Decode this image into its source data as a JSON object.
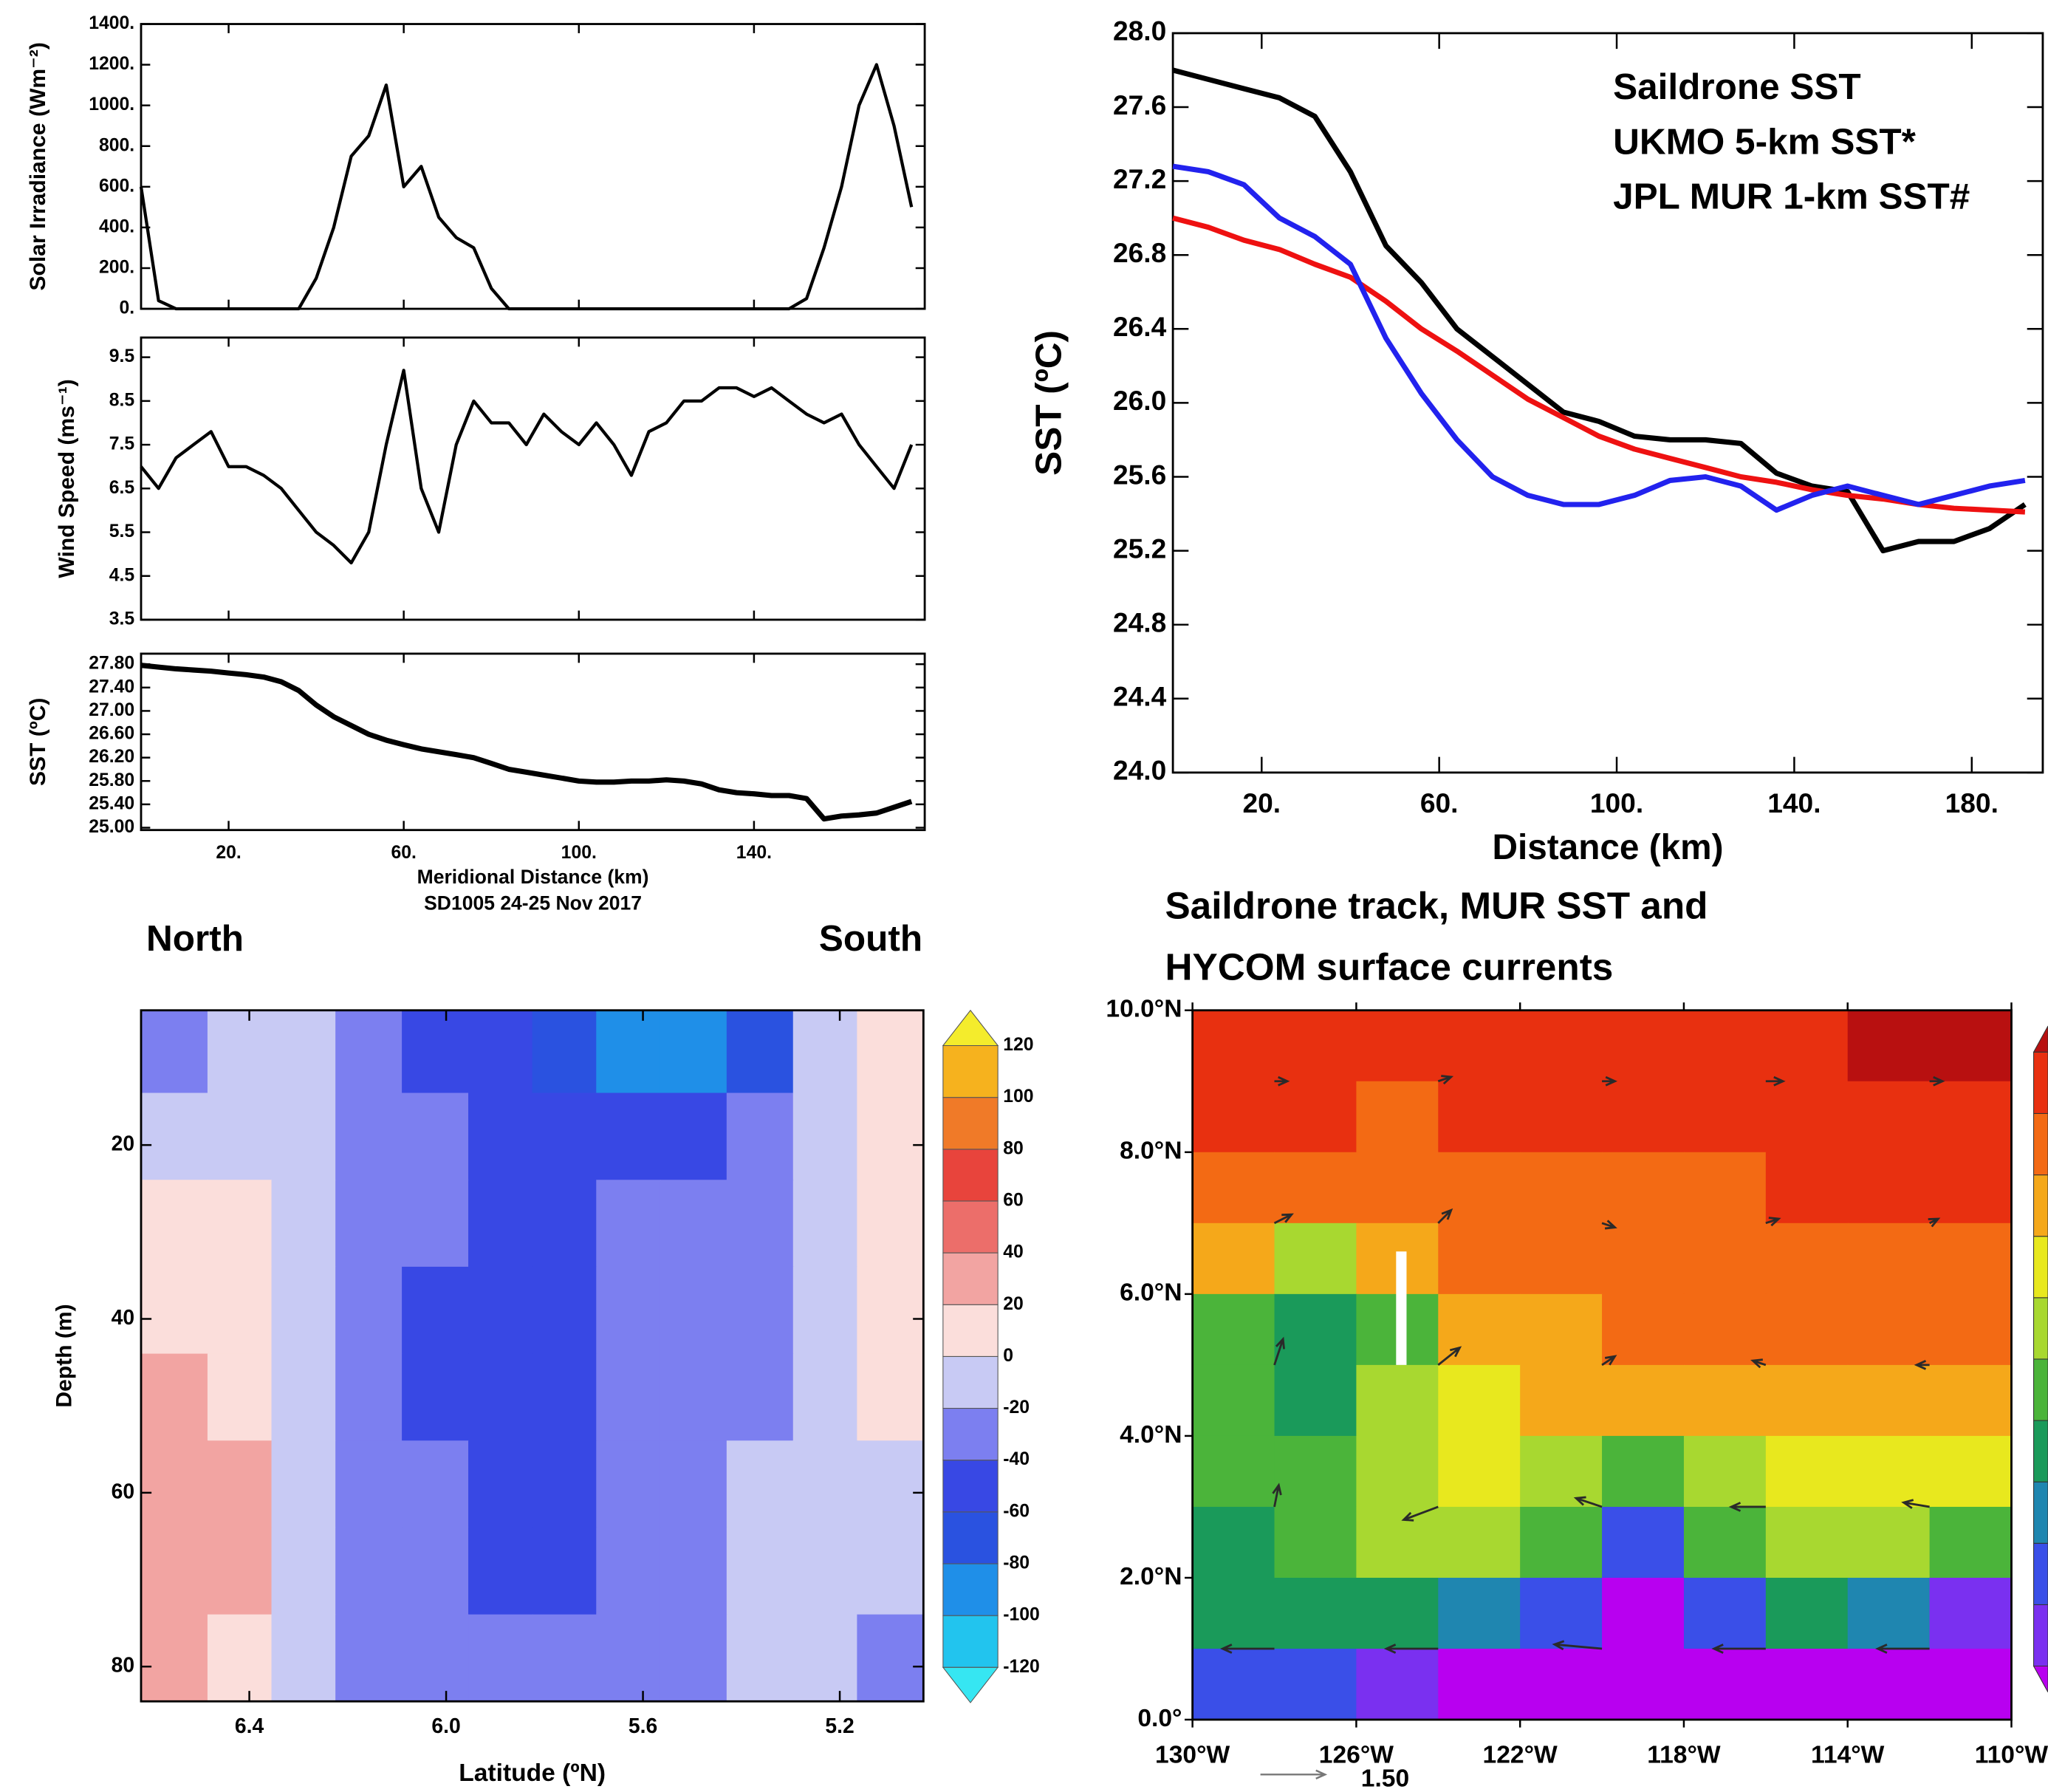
{
  "chart_data": [
    {
      "type": "line",
      "ylabel": "Solar Irradiance (Wm⁻²)",
      "x": [
        0,
        4,
        8,
        12,
        16,
        20,
        24,
        28,
        32,
        36,
        40,
        44,
        48,
        52,
        56,
        60,
        64,
        68,
        72,
        76,
        80,
        84,
        88,
        92,
        96,
        100,
        104,
        108,
        112,
        116,
        120,
        124,
        128,
        132,
        136,
        140,
        144,
        148,
        152,
        156,
        160,
        164,
        168,
        172,
        176
      ],
      "values": [
        600,
        40,
        0,
        0,
        0,
        0,
        0,
        0,
        0,
        0,
        150,
        400,
        750,
        850,
        1100,
        600,
        700,
        450,
        350,
        300,
        100,
        0,
        0,
        0,
        0,
        0,
        0,
        0,
        0,
        0,
        0,
        0,
        0,
        0,
        0,
        0,
        0,
        0,
        50,
        300,
        600,
        1000,
        1200,
        900,
        500
      ],
      "color": "#000000",
      "xlim": [
        0,
        179
      ],
      "ylim": [
        0,
        1400
      ],
      "yticks": [
        {
          "value": 0,
          "label": "0."
        },
        {
          "value": 200,
          "label": "200."
        },
        {
          "value": 400,
          "label": "400."
        },
        {
          "value": 600,
          "label": "600."
        },
        {
          "value": 800,
          "label": "800."
        },
        {
          "value": 1000,
          "label": "1000."
        },
        {
          "value": 1200,
          "label": "1200."
        },
        {
          "value": 1400,
          "label": "1400."
        }
      ]
    },
    {
      "type": "line",
      "ylabel": "Wind Speed (ms⁻¹)",
      "x": [
        0,
        4,
        8,
        12,
        16,
        20,
        24,
        28,
        32,
        36,
        40,
        44,
        48,
        52,
        56,
        60,
        64,
        68,
        72,
        76,
        80,
        84,
        88,
        92,
        96,
        100,
        104,
        108,
        112,
        116,
        120,
        124,
        128,
        132,
        136,
        140,
        144,
        148,
        152,
        156,
        160,
        164,
        168,
        172,
        176
      ],
      "values": [
        7,
        6.5,
        7.2,
        7.5,
        7.8,
        7,
        7,
        6.8,
        6.5,
        6,
        5.5,
        5.2,
        4.8,
        5.5,
        7.5,
        9.2,
        6.5,
        5.5,
        7.5,
        8.5,
        8,
        8,
        7.5,
        8.2,
        7.8,
        7.5,
        8,
        7.5,
        6.8,
        7.8,
        8,
        8.5,
        8.5,
        8.8,
        8.8,
        8.6,
        8.8,
        8.5,
        8.2,
        8,
        8.2,
        7.5,
        7,
        6.5,
        7.5
      ],
      "color": "#000000",
      "xlim": [
        0,
        179
      ],
      "ylim": [
        3.5,
        9.95
      ],
      "yticks": [
        3.5,
        4.5,
        5.5,
        6.5,
        7.5,
        8.5,
        9.5
      ]
    },
    {
      "type": "line",
      "ylabel": "SST (ºC)",
      "xlabel": "Meridional Distance (km)",
      "subtitle": "SD1005 24-25 Nov 2017",
      "annotations": [
        "North",
        "South"
      ],
      "x": [
        0,
        4,
        8,
        12,
        16,
        20,
        24,
        28,
        32,
        36,
        40,
        44,
        48,
        52,
        56,
        60,
        64,
        68,
        72,
        76,
        80,
        84,
        88,
        92,
        96,
        100,
        104,
        108,
        112,
        116,
        120,
        124,
        128,
        132,
        136,
        140,
        144,
        148,
        152,
        156,
        160,
        164,
        168,
        172,
        176
      ],
      "values": [
        27.78,
        27.75,
        27.72,
        27.7,
        27.68,
        27.65,
        27.62,
        27.58,
        27.5,
        27.35,
        27.1,
        26.9,
        26.75,
        26.6,
        26.5,
        26.42,
        26.35,
        26.3,
        26.25,
        26.2,
        26.1,
        26,
        25.95,
        25.9,
        25.85,
        25.8,
        25.78,
        25.78,
        25.8,
        25.8,
        25.82,
        25.8,
        25.75,
        25.65,
        25.6,
        25.58,
        25.55,
        25.55,
        25.5,
        25.15,
        25.2,
        25.22,
        25.25,
        25.35,
        25.45
      ],
      "color": "#000000",
      "xlim": [
        0,
        179
      ],
      "ylim": [
        24.96,
        27.98
      ],
      "xticks": [
        {
          "value": 20,
          "label": "20."
        },
        {
          "value": 60,
          "label": "60."
        },
        {
          "value": 100,
          "label": "100."
        },
        {
          "value": 140,
          "label": "140."
        }
      ],
      "yticks": [
        {
          "value": 25,
          "label": "25.00"
        },
        {
          "value": 25.4,
          "label": "25.40"
        },
        {
          "value": 25.8,
          "label": "25.80"
        },
        {
          "value": 26.2,
          "label": "26.20"
        },
        {
          "value": 26.6,
          "label": "26.60"
        },
        {
          "value": 27,
          "label": "27.00"
        },
        {
          "value": 27.4,
          "label": "27.40"
        },
        {
          "value": 27.8,
          "label": "27.80"
        }
      ]
    },
    {
      "type": "line",
      "xlabel": "Distance (km)",
      "ylabel": "SST (ºC)",
      "legend": "upper right",
      "x": [
        0,
        8,
        16,
        24,
        32,
        40,
        48,
        56,
        64,
        72,
        80,
        88,
        96,
        104,
        112,
        120,
        128,
        136,
        144,
        152,
        160,
        168,
        176,
        184,
        192
      ],
      "series": [
        {
          "name": "Saildrone SST",
          "color": "#000000",
          "values": [
            27.8,
            27.75,
            27.7,
            27.65,
            27.55,
            27.25,
            26.85,
            26.65,
            26.4,
            26.25,
            26.1,
            25.95,
            25.9,
            25.82,
            25.8,
            25.8,
            25.78,
            25.62,
            25.55,
            25.52,
            25.2,
            25.25,
            25.25,
            25.32,
            25.45
          ]
        },
        {
          "name": "UKMO 5-km SST*",
          "color": "#ee1111",
          "values": [
            27,
            26.95,
            26.88,
            26.83,
            26.75,
            26.68,
            26.55,
            26.4,
            26.28,
            26.15,
            26.02,
            25.92,
            25.82,
            25.75,
            25.7,
            25.65,
            25.6,
            25.57,
            25.53,
            25.5,
            25.48,
            25.45,
            25.43,
            25.42,
            25.41
          ]
        },
        {
          "name": "JPL MUR 1-km SST#",
          "color": "#2222ee",
          "values": [
            27.28,
            27.25,
            27.18,
            27,
            26.9,
            26.75,
            26.35,
            26.05,
            25.8,
            25.6,
            25.5,
            25.45,
            25.45,
            25.5,
            25.58,
            25.6,
            25.55,
            25.42,
            25.5,
            25.55,
            25.5,
            25.45,
            25.5,
            25.55,
            25.58
          ]
        }
      ],
      "xlim": [
        0,
        196
      ],
      "ylim": [
        24,
        28
      ],
      "xticks": [
        {
          "value": 20,
          "label": "20."
        },
        {
          "value": 60,
          "label": "60."
        },
        {
          "value": 100,
          "label": "100."
        },
        {
          "value": 140,
          "label": "140."
        },
        {
          "value": 180,
          "label": "180."
        }
      ],
      "yticks": [
        {
          "value": 24,
          "label": "24.0"
        },
        24.4,
        24.8,
        25.2,
        25.6,
        {
          "value": 26,
          "label": "26.0"
        },
        26.4,
        26.8,
        27.2,
        27.6,
        {
          "value": 28,
          "label": "28.0"
        }
      ]
    },
    {
      "type": "contour",
      "xlabel": "Latitude (ºN)",
      "ylabel": "Depth (m)",
      "x": [
        6.55,
        6.42,
        6.29,
        6.16,
        6.02,
        5.89,
        5.76,
        5.63,
        5.5,
        5.36,
        5.23,
        5.1
      ],
      "y": [
        9,
        19,
        29,
        39,
        49,
        59,
        69,
        79
      ],
      "z": [
        [
          -30,
          -20,
          -10,
          -40,
          -50,
          -50,
          -70,
          -100,
          -90,
          -80,
          -20,
          10
        ],
        [
          -10,
          -10,
          -10,
          -30,
          -40,
          -45,
          -50,
          -60,
          -50,
          -40,
          -10,
          10
        ],
        [
          0,
          0,
          -10,
          -30,
          -40,
          -50,
          -50,
          -40,
          -30,
          -30,
          -10,
          10
        ],
        [
          10,
          0,
          -10,
          -30,
          -45,
          -55,
          -60,
          -40,
          -30,
          -30,
          -10,
          10
        ],
        [
          20,
          10,
          -10,
          -30,
          -45,
          -55,
          -50,
          -40,
          -30,
          -25,
          -10,
          0
        ],
        [
          30,
          20,
          -10,
          -30,
          -40,
          -50,
          -50,
          -40,
          -30,
          -20,
          -10,
          -10
        ],
        [
          30,
          20,
          -10,
          -30,
          -40,
          -45,
          -45,
          -35,
          -30,
          -20,
          -10,
          -20
        ],
        [
          30,
          10,
          -20,
          -30,
          -40,
          -40,
          -40,
          -30,
          -30,
          -20,
          -20,
          -40
        ]
      ],
      "xlim": [
        6.62,
        5.03
      ],
      "ylim": [
        84,
        4.5
      ],
      "xticks": [
        6.4,
        {
          "value": 6,
          "label": "6.0"
        },
        5.6,
        5.2
      ],
      "yticks": [
        20,
        40,
        60,
        80
      ],
      "colorbar": {
        "ticks": [
          -120,
          -100,
          -80,
          -60,
          -40,
          -20,
          0,
          20,
          40,
          60,
          80,
          100,
          120
        ],
        "colors": [
          "#36e6f2",
          "#22c4ee",
          "#1f8fe8",
          "#2a52e0",
          "#3848e4",
          "#7c7ff0",
          "#c8caf4",
          "#fbdedb",
          "#f2a4a2",
          "#ec6e6a",
          "#e8443c",
          "#f07a28",
          "#f6b21e",
          "#f4ec2c"
        ]
      }
    },
    {
      "type": "map",
      "title": [
        "Saildrone track, MUR SST and",
        "HYCOM surface currents"
      ],
      "x": [
        -129,
        -127,
        -125,
        -123,
        -121,
        -119,
        -117,
        -115,
        -113,
        -111
      ],
      "y": [
        9.5,
        8.5,
        7.5,
        6.5,
        5.5,
        4.5,
        3.5,
        2.5,
        1.5,
        0.5
      ],
      "z": [
        [
          29.2,
          29.2,
          29,
          29.2,
          29.2,
          29.2,
          29.3,
          29.3,
          29.5,
          29.6
        ],
        [
          29,
          29,
          28.8,
          29,
          29,
          29,
          29.1,
          29.2,
          29.2,
          29.3
        ],
        [
          28.7,
          28.6,
          28.7,
          28.8,
          28.8,
          28.9,
          28.9,
          29,
          29.1,
          29.1
        ],
        [
          28,
          27.3,
          28,
          28.5,
          28.6,
          28.7,
          28.7,
          28.8,
          28.8,
          28.9
        ],
        [
          26.8,
          26.3,
          26.9,
          28,
          28.3,
          28.5,
          28.5,
          28.5,
          28.6,
          28.7
        ],
        [
          26.6,
          26.4,
          27.2,
          27.7,
          28,
          28,
          28,
          28.2,
          28.2,
          28.4
        ],
        [
          26.5,
          26.8,
          27.3,
          27.5,
          27.2,
          26.5,
          27.3,
          27.6,
          27.6,
          27.8
        ],
        [
          26.3,
          26.6,
          27,
          27,
          26.6,
          25.2,
          26.8,
          27.1,
          27.2,
          26.8
        ],
        [
          26,
          26.2,
          26.1,
          25.8,
          25,
          24.2,
          25.4,
          26,
          25.6,
          24.6
        ],
        [
          25.3,
          25,
          24.6,
          24.2,
          24.2,
          24.2,
          24.2,
          24.3,
          24.2,
          24.2
        ]
      ],
      "levels": [
        24.5,
        25,
        25.5,
        26,
        26.5,
        27,
        27.5,
        28,
        28.5,
        29,
        29.5
      ],
      "colors": [
        "#b800f0",
        "#7a30f0",
        "#3a4fe8",
        "#1f86b0",
        "#1a9a5a",
        "#4bb43a",
        "#a8d830",
        "#e8e81e",
        "#f5a81a",
        "#f36a14",
        "#e83010",
        "#b81010"
      ],
      "vectors": {
        "x": [
          -128,
          -124,
          -120,
          -116,
          -112,
          -128,
          -124,
          -120,
          -116,
          -112,
          -128,
          -124,
          -120,
          -116,
          -112,
          -128,
          -124,
          -120,
          -116,
          -112,
          -128,
          -124,
          -120,
          -116,
          -112
        ],
        "y": [
          1,
          1,
          1,
          1,
          1,
          3,
          3,
          3,
          3,
          3,
          5,
          5,
          5,
          5,
          5,
          7,
          7,
          7,
          7,
          7,
          9,
          9,
          9,
          9,
          9
        ],
        "u": [
          -1.2,
          -1.2,
          -1.1,
          -1.2,
          -1.2,
          0.1,
          -0.8,
          -0.6,
          -0.8,
          -0.6,
          0.2,
          0.5,
          0.3,
          -0.3,
          -0.3,
          0.4,
          0.3,
          0.3,
          0.3,
          0.2,
          0.3,
          0.3,
          0.3,
          0.4,
          0.3
        ],
        "v": [
          0,
          0,
          0.1,
          0,
          0,
          0.5,
          -0.3,
          0.2,
          0,
          0.1,
          0.6,
          0.4,
          0.2,
          0.1,
          0,
          0.2,
          0.3,
          -0.1,
          0.1,
          0.1,
          0,
          0.1,
          0,
          0,
          0
        ],
        "reference": {
          "value": 1.5,
          "label": "1.50"
        }
      },
      "track": {
        "x": [
          -124.9,
          -124.9
        ],
        "y": [
          6.6,
          5.0
        ]
      },
      "xlim": [
        -130,
        -110
      ],
      "ylim": [
        0,
        10
      ],
      "xticks": [
        {
          "value": -130,
          "label": "130°W"
        },
        {
          "value": -126,
          "label": "126°W"
        },
        {
          "value": -122,
          "label": "122°W"
        },
        {
          "value": -118,
          "label": "118°W"
        },
        {
          "value": -114,
          "label": "114°W"
        },
        {
          "value": -110,
          "label": "110°W"
        }
      ],
      "yticks": [
        {
          "value": 0,
          "label": "0.0°"
        },
        {
          "value": 2,
          "label": "2.0°N"
        },
        {
          "value": 4,
          "label": "4.0°N"
        },
        {
          "value": 6,
          "label": "6.0°N"
        },
        {
          "value": 8,
          "label": "8.0°N"
        },
        {
          "value": 10,
          "label": "10.0°N"
        }
      ]
    }
  ]
}
